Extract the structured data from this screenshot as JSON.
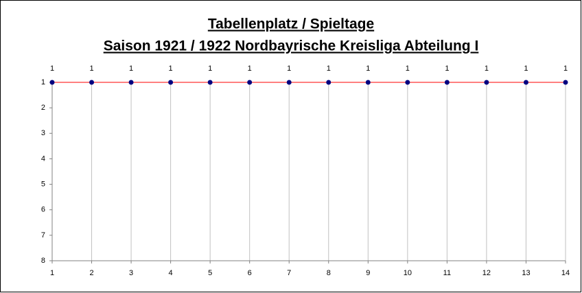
{
  "chart_data": {
    "type": "line",
    "title": "Tabellenplatz / Spieltage",
    "subtitle": "Saison 1921 / 1922 Nordbayrische Kreisliga Abteilung I",
    "x": [
      1,
      2,
      3,
      4,
      5,
      6,
      7,
      8,
      9,
      10,
      11,
      12,
      13,
      14
    ],
    "series": [
      {
        "color": "#ff0000",
        "marker_color": "#000080",
        "values": [
          1,
          1,
          1,
          1,
          1,
          1,
          1,
          1,
          1,
          1,
          1,
          1,
          1,
          1
        ]
      }
    ],
    "xlim": [
      1,
      14
    ],
    "xticks": [
      1,
      2,
      3,
      4,
      5,
      6,
      7,
      8,
      9,
      10,
      11,
      12,
      13,
      14
    ],
    "ylim": [
      1,
      8
    ],
    "yticks": [
      1,
      2,
      3,
      4,
      5,
      6,
      7,
      8
    ],
    "y_reversed": true,
    "x_grid": true,
    "data_labels": true
  }
}
